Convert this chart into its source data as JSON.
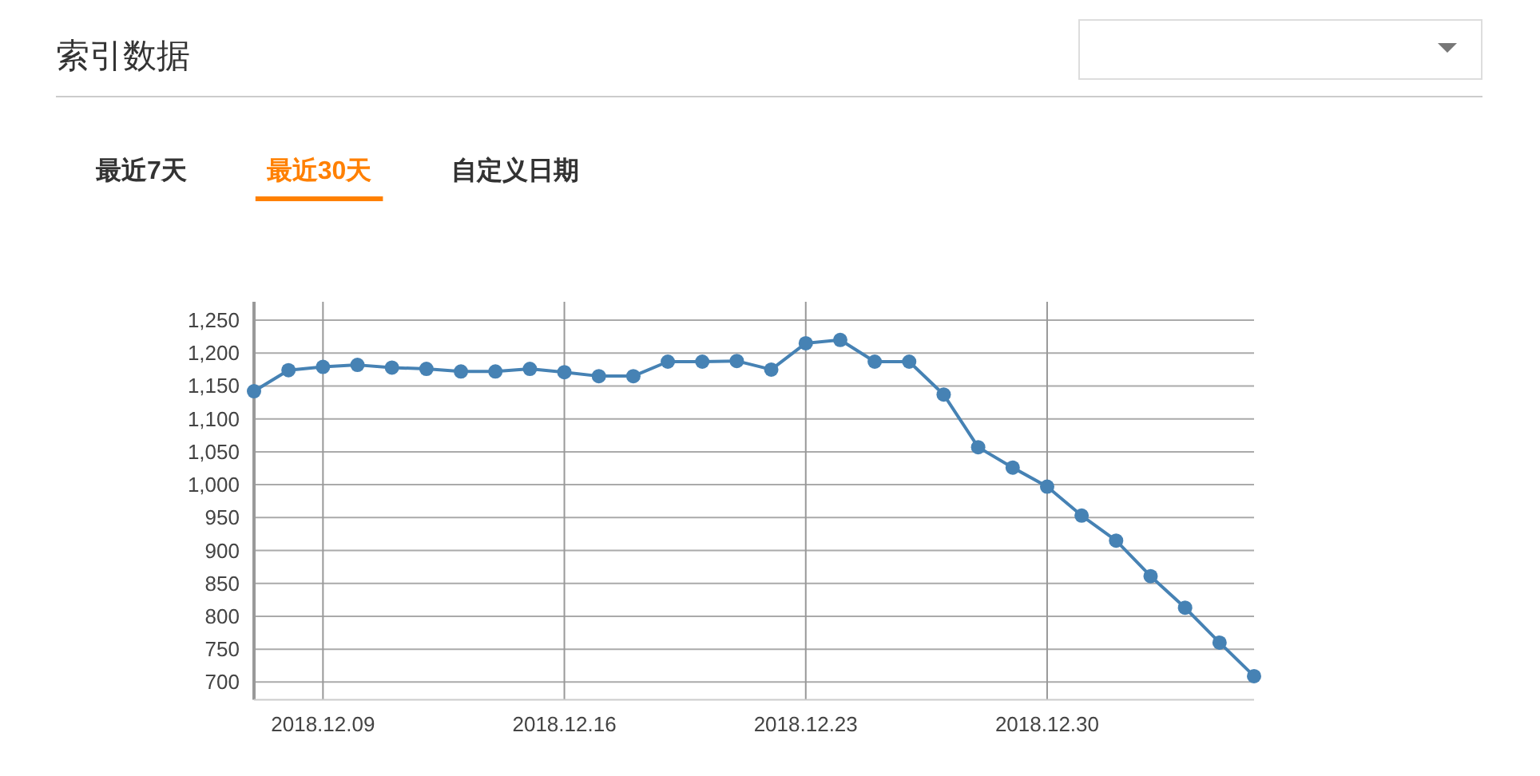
{
  "chart_data": {
    "type": "line",
    "title": "索引数据",
    "subtitle": "最近30天",
    "annotations": [
      "最近7天",
      "自定义日期"
    ],
    "x": [
      "2018-12-07",
      "2018-12-08",
      "2018-12-09",
      "2018-12-10",
      "2018-12-11",
      "2018-12-12",
      "2018-12-13",
      "2018-12-14",
      "2018-12-15",
      "2018-12-16",
      "2018-12-17",
      "2018-12-18",
      "2018-12-19",
      "2018-12-20",
      "2018-12-21",
      "2018-12-22",
      "2018-12-23",
      "2018-12-24",
      "2018-12-25",
      "2018-12-26",
      "2018-12-27",
      "2018-12-28",
      "2018-12-29",
      "2018-12-30",
      "2018-12-31",
      "2019-01-01",
      "2019-01-02",
      "2019-01-03",
      "2019-01-04",
      "2019-01-05"
    ],
    "series": [
      {
        "color": "#4682b4",
        "values": [
          1142,
          1174,
          1179,
          1182,
          1178,
          1176,
          1172,
          1172,
          1176,
          1171,
          1165,
          1165,
          1187,
          1187,
          1188,
          1175,
          1215,
          1220,
          1187,
          1187,
          1137,
          1057,
          1026,
          997,
          953,
          915,
          861,
          813,
          760,
          709
        ]
      }
    ],
    "xlim": [
      "2018-12-07",
      "2019-01-05"
    ],
    "xticks": [
      {
        "value": "2018-12-09",
        "label": "2018.12.09"
      },
      {
        "value": "2018-12-16",
        "label": "2018.12.16"
      },
      {
        "value": "2018-12-23",
        "label": "2018.12.23"
      },
      {
        "value": "2018-12-30",
        "label": "2018.12.30"
      }
    ],
    "ylim": [
      673,
      1278
    ],
    "yticks": [
      700,
      750,
      800,
      850,
      900,
      950,
      {
        "value": 1000,
        "label": "1,000"
      },
      {
        "value": 1050,
        "label": "1,050"
      },
      {
        "value": 1100,
        "label": "1,100"
      },
      {
        "value": 1150,
        "label": "1,150"
      },
      {
        "value": 1200,
        "label": "1,200"
      },
      {
        "value": 1250,
        "label": "1,250"
      }
    ],
    "grid": true,
    "marker": "circle",
    "line_style": "solid"
  }
}
